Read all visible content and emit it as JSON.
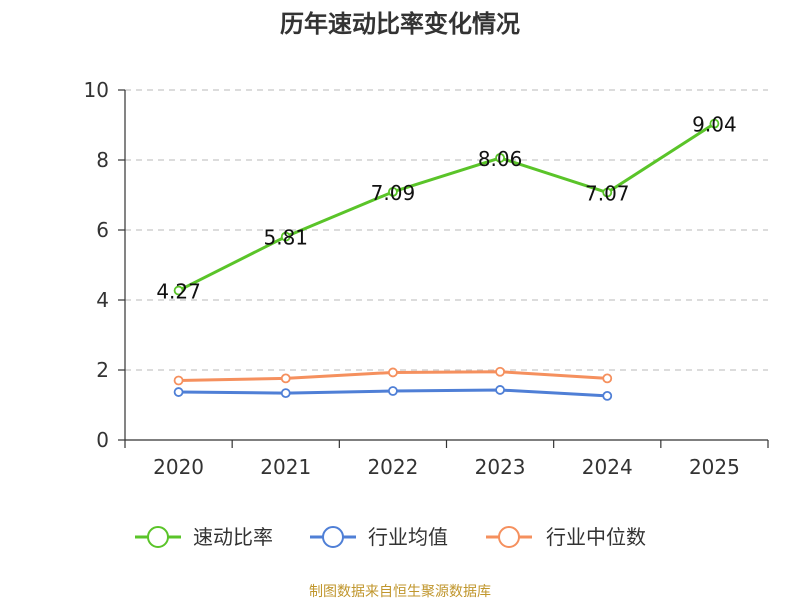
{
  "chart_data": {
    "type": "line",
    "title": "历年速动比率变化情况",
    "categories": [
      "2020",
      "2021",
      "2022",
      "2023",
      "2024",
      "2025"
    ],
    "ylim": [
      0,
      10
    ],
    "yticks": [
      "0",
      "2",
      "4",
      "6",
      "8",
      "10"
    ],
    "grid": "horizontal dashed",
    "legend_position": "bottom",
    "series": [
      {
        "name": "速动比率",
        "color": "#5ac429",
        "values": [
          4.27,
          5.81,
          7.09,
          8.06,
          7.07,
          9.04
        ],
        "show_labels": true,
        "labels": [
          "4.27",
          "5.81",
          "7.09",
          "8.06",
          "7.07",
          "9.04"
        ]
      },
      {
        "name": "行业均值",
        "color": "#4f7fd6",
        "values": [
          1.37,
          1.34,
          1.4,
          1.43,
          1.26,
          null
        ],
        "show_labels": false
      },
      {
        "name": "行业中位数",
        "color": "#f5905e",
        "values": [
          1.7,
          1.76,
          1.93,
          1.95,
          1.76,
          null
        ],
        "show_labels": false
      }
    ]
  },
  "source_text": "制图数据来自恒生聚源数据库"
}
